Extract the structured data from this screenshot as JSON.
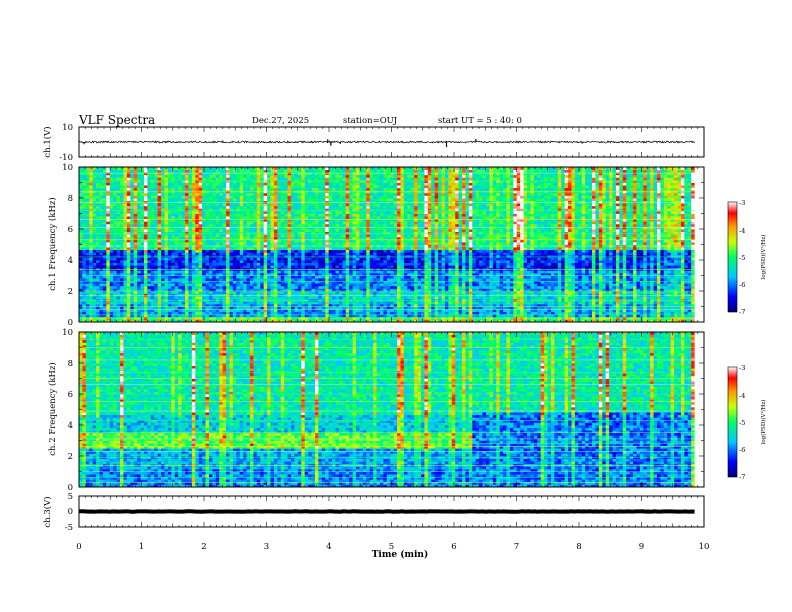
{
  "header": {
    "title": "VLF Spectra",
    "date": "Dec.27, 2025",
    "station": "station=OUJ",
    "start": "start UT =  5 : 40: 0"
  },
  "chart_data": {
    "type": "heatmap",
    "title": "VLF Spectra",
    "xlabel": "Time (min)",
    "xlim": [
      0,
      10
    ],
    "x_ticks": [
      "0",
      "1",
      "2",
      "3",
      "4",
      "5",
      "6",
      "7",
      "8",
      "9",
      "10"
    ],
    "data_end_min": 9.85,
    "panels": [
      {
        "id": "ch1-waveform",
        "type": "line",
        "ylabel": "ch.1(V)",
        "ylim": [
          -10,
          10
        ],
        "y_ticks": [
          "10",
          "-10"
        ],
        "baseline": 0,
        "noise_amplitude": 0.6,
        "spikes": [
          {
            "t": 0.08,
            "v": -1.5
          },
          {
            "t": 3.98,
            "v": 1.8
          },
          {
            "t": 4.03,
            "v": -2.5
          },
          {
            "t": 4.18,
            "v": -1.2
          },
          {
            "t": 5.88,
            "v": -3.4
          },
          {
            "t": 6.35,
            "v": 2.0
          },
          {
            "t": 2.3,
            "v": 1.0
          },
          {
            "t": 8.05,
            "v": -1.0
          }
        ]
      },
      {
        "id": "ch1-spectrogram",
        "type": "heatmap",
        "ylabel": "ch.1 Frequency (kHz)",
        "ylim": [
          0,
          10
        ],
        "y_ticks": [
          "0",
          "2",
          "4",
          "6",
          "8",
          "10"
        ],
        "colorbar": {
          "label": "log(PSD)(V²/Hz)",
          "range": [
            -7,
            -3
          ],
          "ticks": [
            "-3",
            "-4",
            "-5",
            "-6",
            "-7"
          ]
        },
        "band_levels": [
          {
            "f": [
              0,
              0.4
            ],
            "level": -5.0
          },
          {
            "f": [
              0.4,
              1.2
            ],
            "level": -5.9
          },
          {
            "f": [
              1.2,
              2.0
            ],
            "level": -5.6
          },
          {
            "f": [
              2.0,
              3.3
            ],
            "level": -6.0
          },
          {
            "f": [
              3.3,
              4.6
            ],
            "level": -6.4
          },
          {
            "f": [
              4.6,
              10.0
            ],
            "level": -5.2
          }
        ],
        "lines_khz": [
          0.25,
          0.5,
          0.8,
          1.0,
          1.4,
          1.7,
          2.0,
          2.6,
          3.0,
          3.4,
          4.2,
          4.9,
          5.3,
          5.7,
          6.1,
          6.6,
          7.2,
          7.7,
          8.4,
          9.1,
          9.6
        ]
      },
      {
        "id": "ch2-spectrogram",
        "type": "heatmap",
        "ylabel": "ch.2 Frequency (kHz)",
        "ylim": [
          0,
          10
        ],
        "y_ticks": [
          "0",
          "2",
          "4",
          "6",
          "8",
          "10"
        ],
        "colorbar": {
          "label": "log(PSD)(V²/Hz)",
          "range": [
            -7,
            -3
          ],
          "ticks": [
            "-3",
            "-4",
            "-5",
            "-6",
            "-7"
          ]
        },
        "band_levels": [
          {
            "f": [
              0,
              1.2
            ],
            "level": -6.0
          },
          {
            "f": [
              1.2,
              2.5
            ],
            "level": -5.8
          },
          {
            "f": [
              2.5,
              3.5
            ],
            "level": -4.8
          },
          {
            "f": [
              3.5,
              4.6
            ],
            "level": -5.6
          },
          {
            "f": [
              4.6,
              10.0
            ],
            "level": -5.3
          }
        ],
        "regime_change_min": 6.3,
        "after_change_level": -6.0,
        "lines_khz": [
          0.3,
          0.6,
          1.0,
          1.4,
          1.9,
          2.3,
          2.6,
          2.8,
          3.1,
          3.5,
          4.3,
          4.9,
          5.5,
          6.0,
          6.6,
          7.0,
          7.4,
          8.2,
          9.0,
          9.5
        ]
      },
      {
        "id": "ch3-waveform",
        "type": "line",
        "ylabel": "ch.3(V)",
        "ylim": [
          -5,
          5
        ],
        "y_ticks": [
          "5",
          "0",
          "-5"
        ],
        "baseline": 0,
        "noise_amplitude": 0.3
      }
    ]
  }
}
